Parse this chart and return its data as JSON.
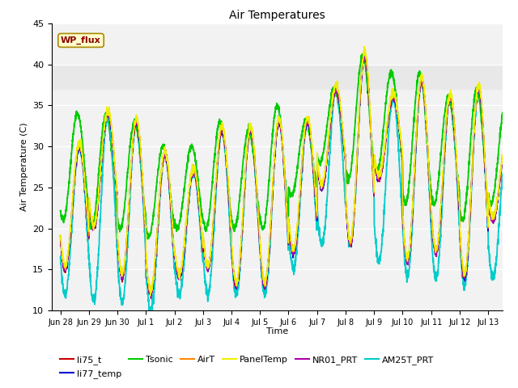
{
  "title": "Air Temperatures",
  "xlabel": "Time",
  "ylabel": "Air Temperature (C)",
  "ylim": [
    10,
    45
  ],
  "background_color": "#ffffff",
  "plot_bg": "#f2f2f2",
  "shaded_band": [
    37.0,
    40.0
  ],
  "shaded_color": "#e8e8e8",
  "series": [
    {
      "name": "li75_t",
      "color": "#cc0000",
      "lw": 1.0,
      "zorder": 4
    },
    {
      "name": "li77_temp",
      "color": "#0000cc",
      "lw": 1.0,
      "zorder": 4
    },
    {
      "name": "Tsonic",
      "color": "#00cc00",
      "lw": 1.3,
      "zorder": 3
    },
    {
      "name": "AirT",
      "color": "#ff8800",
      "lw": 1.0,
      "zorder": 5
    },
    {
      "name": "PanelTemp",
      "color": "#eeee00",
      "lw": 1.0,
      "zorder": 5
    },
    {
      "name": "NR01_PRT",
      "color": "#aa00aa",
      "lw": 1.0,
      "zorder": 4
    },
    {
      "name": "AM25T_PRT",
      "color": "#00cccc",
      "lw": 1.3,
      "zorder": 3
    }
  ],
  "xtick_labels": [
    "Jun 28",
    "Jun 29",
    "Jun 30",
    "Jul 1",
    "Jul 2",
    "Jul 3",
    "Jul 4",
    "Jul 5",
    "Jul 6",
    "Jul 7",
    "Jul 8",
    "Jul 9",
    "Jul 10",
    "Jul 11",
    "Jul 12",
    "Jul 13"
  ],
  "xtick_positions": [
    0,
    1,
    2,
    3,
    4,
    5,
    6,
    7,
    8,
    9,
    10,
    11,
    12,
    13,
    14,
    15
  ],
  "wp_flux_label": "WP_flux",
  "day_peaks": [
    30,
    34,
    33,
    29,
    27,
    32,
    32,
    33,
    33,
    37,
    41,
    36,
    38,
    36,
    37,
    31,
    34
  ],
  "day_lows": [
    15,
    20,
    14,
    12,
    14,
    15,
    13,
    13,
    17,
    25,
    18,
    26,
    16,
    17,
    14,
    21,
    15
  ],
  "tsonic_peaks": [
    34,
    34,
    33,
    30,
    30,
    33,
    32,
    35,
    33,
    37,
    41,
    39,
    39,
    36,
    37,
    35,
    34
  ],
  "tsonic_lows": [
    21,
    20,
    20,
    19,
    20,
    20,
    20,
    20,
    24,
    28,
    26,
    27,
    23,
    23,
    21,
    23,
    22
  ],
  "am25_lows": [
    12,
    11,
    11,
    10,
    12,
    12,
    12,
    12,
    15,
    18,
    18,
    16,
    14,
    14,
    13,
    14,
    14
  ]
}
